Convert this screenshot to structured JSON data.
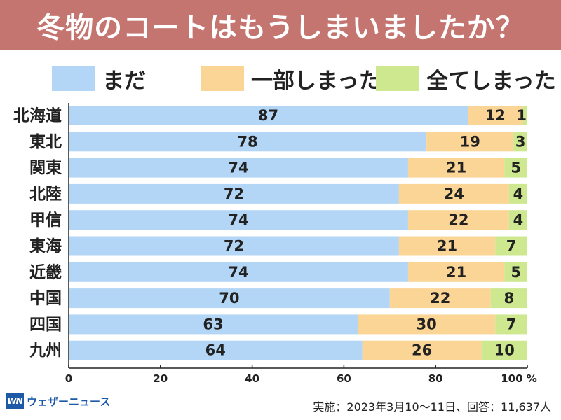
{
  "title": "冬物のコートはもうしまいましたか？",
  "colors": {
    "title_bg": "#c4756f",
    "series": [
      "#b3d6f6",
      "#fbd596",
      "#cde88f"
    ]
  },
  "logo": {
    "mark": "WN",
    "text": "ウェザーニュース"
  },
  "footer_note": "実施：2023年3月10～11日、回答：11,637人",
  "chart_data": {
    "type": "bar",
    "orientation": "horizontal",
    "stacked": true,
    "categories": [
      "北海道",
      "東北",
      "関東",
      "北陸",
      "甲信",
      "東海",
      "近畿",
      "中国",
      "四国",
      "九州"
    ],
    "series": [
      {
        "name": "まだ",
        "values": [
          87,
          78,
          74,
          72,
          74,
          72,
          74,
          70,
          63,
          64
        ]
      },
      {
        "name": "一部しまった",
        "values": [
          12,
          19,
          21,
          24,
          22,
          21,
          21,
          22,
          30,
          26
        ]
      },
      {
        "name": "全てしまった",
        "values": [
          1,
          3,
          5,
          4,
          4,
          7,
          5,
          8,
          7,
          10
        ]
      }
    ],
    "xlim": [
      0,
      100
    ],
    "xticks": [
      "0",
      "20",
      "40",
      "60",
      "80",
      "100 %"
    ],
    "legend_position": "top"
  }
}
